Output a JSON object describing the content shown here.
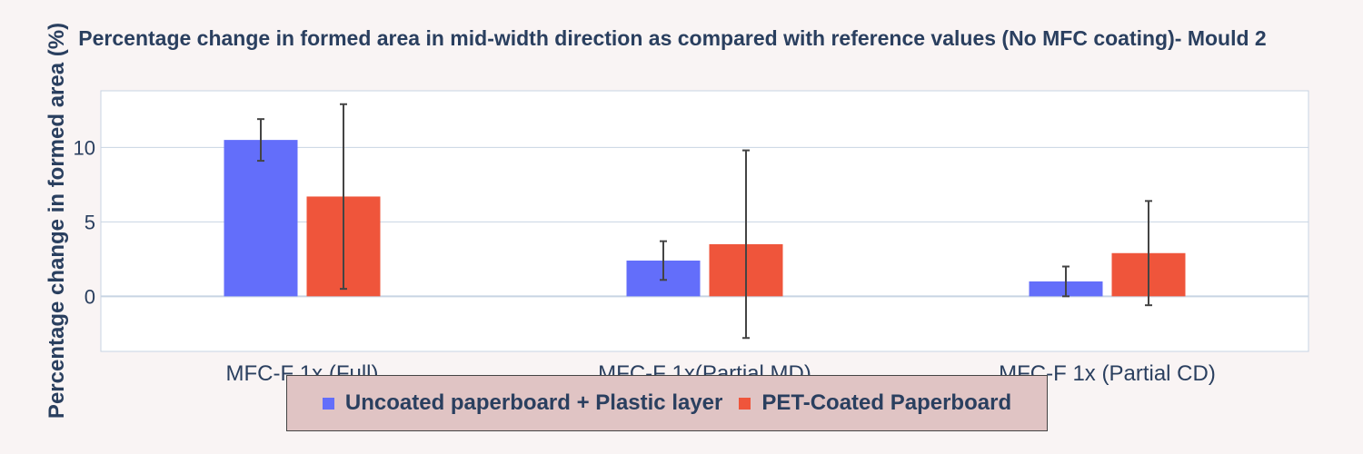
{
  "chart_data": {
    "type": "bar",
    "title": "Percentage change in formed area in mid-width direction as compared with reference values (No MFC coating)- Mould 2",
    "xlabel": "",
    "ylabel": "Percentage change in formed area (%)",
    "categories": [
      "MFC-F 1x (Full)",
      "MFC-F 1x(Partial MD)",
      "MFC-F 1x (Partial CD)"
    ],
    "ylim": [
      -3.7,
      13.8
    ],
    "yticks": [
      0,
      5,
      10
    ],
    "grid": true,
    "legend_position": "bottom",
    "series": [
      {
        "name": "Uncoated paperboard + Plastic layer",
        "color": "#636efa",
        "values": [
          10.5,
          2.4,
          1.0
        ],
        "error": [
          1.4,
          1.3,
          1.0
        ]
      },
      {
        "name": "PET-Coated Paperboard",
        "color": "#ef553b",
        "values": [
          6.7,
          3.5,
          2.9
        ],
        "error": [
          6.2,
          6.3,
          3.5
        ]
      }
    ]
  }
}
